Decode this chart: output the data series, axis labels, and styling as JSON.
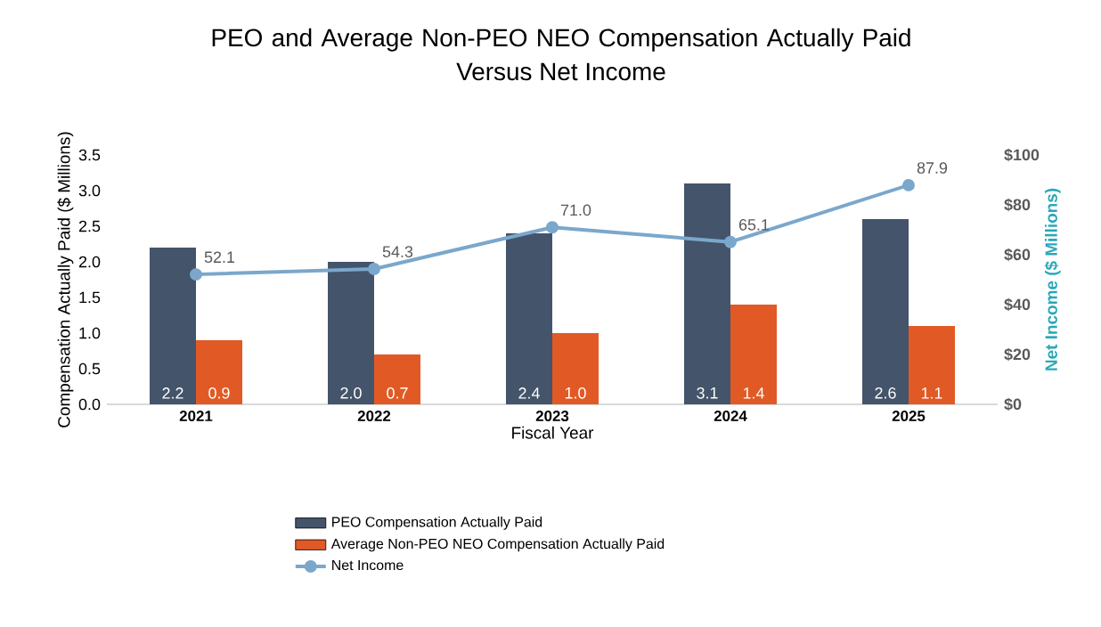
{
  "chart_data": {
    "type": "bar",
    "title": "PEO and Average Non-PEO NEO Compensation Actually Paid",
    "subtitle": "Versus Net Income",
    "xlabel": "Fiscal Year",
    "ylabel": "Compensation Actually Paid ($ Millions)",
    "y2label": "Net Income ($ Millions)",
    "categories": [
      "2021",
      "2022",
      "2023",
      "2024",
      "2025"
    ],
    "series": [
      {
        "name": "PEO Compensation Actually Paid",
        "color": "#44546a",
        "values": [
          2.2,
          2.0,
          2.4,
          3.1,
          2.6
        ],
        "value_labels": [
          "2.2",
          "2.0",
          "2.4",
          "3.1",
          "2.6"
        ]
      },
      {
        "name": "Average Non-PEO NEO Compensation Actually Paid",
        "color": "#e15a25",
        "values": [
          0.9,
          0.7,
          1.0,
          1.4,
          1.1
        ],
        "value_labels": [
          "0.9",
          "0.7",
          "1.0",
          "1.4",
          "1.1"
        ]
      },
      {
        "name": "Net Income",
        "type": "line",
        "axis": "y2",
        "marker": "circle",
        "color": "#7ba7cc",
        "values": [
          52.1,
          54.3,
          71.0,
          65.1,
          87.9
        ],
        "value_labels": [
          "52.1",
          "54.3",
          "71.0",
          "65.1",
          "87.9"
        ]
      }
    ],
    "ylim": [
      0,
      3.5
    ],
    "yticks": [
      {
        "value": 0,
        "label": "0.0"
      },
      {
        "value": 0.5,
        "label": "0.5"
      },
      {
        "value": 1,
        "label": "1.0"
      },
      {
        "value": 1.5,
        "label": "1.5"
      },
      {
        "value": 2,
        "label": "2.0"
      },
      {
        "value": 2.5,
        "label": "2.5"
      },
      {
        "value": 3,
        "label": "3.0"
      },
      {
        "value": 3.5,
        "label": "3.5"
      }
    ],
    "y2lim": [
      0,
      100
    ],
    "y2ticks": [
      {
        "value": 0,
        "label": "$0"
      },
      {
        "value": 20,
        "label": "$20"
      },
      {
        "value": 40,
        "label": "$40"
      },
      {
        "value": 60,
        "label": "$60"
      },
      {
        "value": 80,
        "label": "$80"
      },
      {
        "value": 100,
        "label": "$100"
      }
    ],
    "legend": "bottom"
  }
}
